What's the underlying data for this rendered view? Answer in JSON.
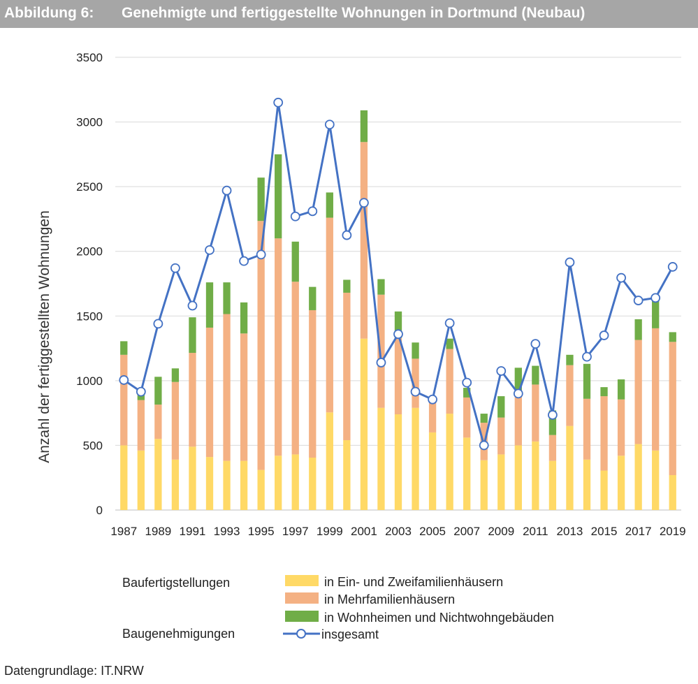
{
  "header": {
    "figure_number": "Abbildung 6:",
    "title": "Genehmigte und fertiggestellte Wohnungen in Dortmund (Neubau)"
  },
  "footer": {
    "source": "Datengrundlage: IT.NRW"
  },
  "legend": {
    "group1_label": "Baufertigstellungen",
    "group2_label": "Baugenehmigungen"
  },
  "chart_data": {
    "type": "bar",
    "stacked": true,
    "ylabel": "Anzahl der fertiggestellten Wohnungen",
    "ylim": [
      0,
      3500
    ],
    "yticks": [
      0,
      500,
      1000,
      1500,
      2000,
      2500,
      3000,
      3500
    ],
    "grid": true,
    "legend_position": "bottom",
    "categories": [
      1987,
      1988,
      1989,
      1990,
      1991,
      1992,
      1993,
      1994,
      1995,
      1996,
      1997,
      1998,
      1999,
      2000,
      2001,
      2002,
      2003,
      2004,
      2005,
      2006,
      2007,
      2008,
      2009,
      2010,
      2011,
      2012,
      2013,
      2014,
      2015,
      2016,
      2017,
      2018,
      2019
    ],
    "xtick_labels": [
      "1987",
      "1989",
      "1991",
      "1993",
      "1995",
      "1997",
      "1999",
      "2001",
      "2003",
      "2005",
      "2007",
      "2009",
      "2011",
      "2013",
      "2015",
      "2017",
      "2019"
    ],
    "series": [
      {
        "name": "in Ein- und Zweifamilienhäusern",
        "color": "#ffd966",
        "values": [
          500,
          460,
          550,
          390,
          490,
          410,
          380,
          380,
          310,
          420,
          430,
          405,
          755,
          540,
          1325,
          790,
          740,
          790,
          600,
          745,
          560,
          385,
          430,
          500,
          530,
          380,
          650,
          390,
          305,
          420,
          510,
          460,
          270
        ]
      },
      {
        "name": "in Mehrfamilienhäusern",
        "color": "#f4b183",
        "values": [
          700,
          390,
          265,
          600,
          725,
          1000,
          1135,
          985,
          1925,
          1680,
          1335,
          1140,
          1505,
          1140,
          1520,
          875,
          590,
          380,
          250,
          500,
          310,
          290,
          285,
          400,
          440,
          200,
          470,
          470,
          575,
          435,
          805,
          945,
          1030
        ]
      },
      {
        "name": "in Wohnheimen und Nichtwohngebäuden",
        "color": "#70ad47",
        "values": [
          105,
          40,
          215,
          105,
          275,
          350,
          245,
          240,
          335,
          650,
          310,
          180,
          195,
          100,
          245,
          120,
          205,
          125,
          0,
          80,
          75,
          70,
          165,
          200,
          145,
          190,
          80,
          270,
          70,
          155,
          160,
          215,
          75
        ]
      },
      {
        "name": "insgesamt",
        "type": "line",
        "color": "#4472c4",
        "values": [
          1005,
          915,
          1440,
          1870,
          1580,
          2010,
          2470,
          1925,
          1975,
          3150,
          2270,
          2310,
          2980,
          2125,
          2375,
          1140,
          1360,
          915,
          855,
          1445,
          985,
          500,
          1075,
          900,
          1285,
          735,
          1915,
          1185,
          1350,
          1795,
          1620,
          1640,
          1880
        ]
      }
    ]
  }
}
